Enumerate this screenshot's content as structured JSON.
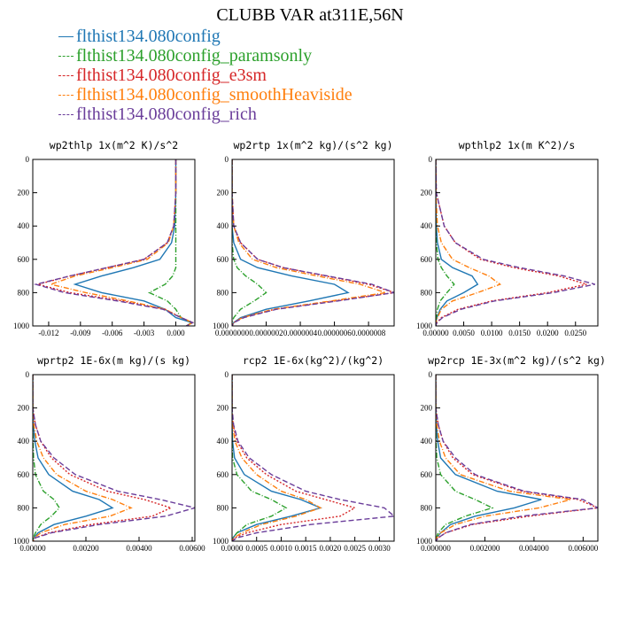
{
  "title": "CLUBB VAR at311E,56N",
  "colors": {
    "blue": "#1f77b4",
    "green": "#2ca02c",
    "red": "#d62728",
    "orange": "#ff7f0e",
    "purple": "#6a3d9a"
  },
  "legend": [
    {
      "label": "flthist134.080config",
      "color": "#1f77b4",
      "dash": "solid"
    },
    {
      "label": "flthist134.080config_paramsonly",
      "color": "#2ca02c",
      "dash": "dashdot"
    },
    {
      "label": "flthist134.080config_e3sm",
      "color": "#d62728",
      "dash": "dot"
    },
    {
      "label": "flthist134.080config_smoothHeaviside",
      "color": "#ff7f0e",
      "dash": "dashdot"
    },
    {
      "label": "flthist134.080config_rich",
      "color": "#6a3d9a",
      "dash": "dash"
    }
  ],
  "chart_data": [
    {
      "type": "line",
      "title": "wp2thlp  1x(m^2 K)/s^2",
      "xlim": [
        -0.0135,
        0.0018
      ],
      "ylim": [
        1000,
        0
      ],
      "xticks": [
        -0.012,
        -0.009,
        -0.006,
        -0.003,
        0.0
      ],
      "xticklabels": [
        "-0.012",
        "-0.009",
        "-0.006",
        "-0.003",
        "0.000"
      ],
      "yticks": [
        0,
        200,
        400,
        600,
        800,
        1000
      ],
      "y": [
        0,
        200,
        400,
        500,
        600,
        650,
        700,
        750,
        800,
        850,
        900,
        950,
        980,
        1000
      ],
      "series": [
        {
          "values": [
            0,
            0,
            -0.0001,
            -0.0004,
            -0.0015,
            -0.004,
            -0.007,
            -0.0095,
            -0.007,
            -0.003,
            -0.001,
            0,
            0.0015,
            0.001
          ]
        },
        {
          "values": [
            0,
            0,
            0,
            0,
            0,
            0,
            -0.0003,
            -0.001,
            -0.0025,
            -0.0008,
            0,
            0.0005,
            0.0015,
            0.001
          ]
        },
        {
          "values": [
            0,
            0,
            -0.0002,
            -0.0008,
            -0.003,
            -0.0065,
            -0.01,
            -0.013,
            -0.01,
            -0.005,
            -0.001,
            0.0005,
            0.0016,
            0.001
          ]
        },
        {
          "values": [
            0,
            0,
            -0.0002,
            -0.0007,
            -0.0027,
            -0.006,
            -0.0095,
            -0.0118,
            -0.0085,
            -0.0045,
            -0.001,
            0.0005,
            0.0016,
            0.001
          ]
        },
        {
          "values": [
            0,
            0,
            -0.0002,
            -0.0008,
            -0.003,
            -0.0065,
            -0.01,
            -0.0132,
            -0.0105,
            -0.0055,
            -0.0012,
            0.0005,
            0.0016,
            0.001
          ]
        }
      ]
    },
    {
      "type": "line",
      "title": "wp2rtp  1x(m^2 kg)/(s^2 kg)",
      "xlim": [
        0,
        9.5e-07
      ],
      "ylim": [
        1000,
        0
      ],
      "xticks": [
        0,
        2e-07,
        4e-07,
        6e-07,
        8e-07
      ],
      "xticklabels": [
        "0.0000000",
        "0.0000002",
        "0.0000004",
        "0.0000006",
        "0.0000008"
      ],
      "yticks": [
        0,
        200,
        400,
        600,
        800,
        1000
      ],
      "y": [
        0,
        200,
        400,
        500,
        600,
        650,
        700,
        750,
        800,
        850,
        900,
        950,
        980,
        1000
      ],
      "series": [
        {
          "values": [
            0,
            0,
            0,
            1e-08,
            5e-08,
            1.5e-07,
            3.5e-07,
            6e-07,
            6.8e-07,
            4.5e-07,
            2e-07,
            5e-08,
            1e-08,
            0
          ]
        },
        {
          "values": [
            0,
            0,
            0,
            0,
            1e-08,
            3e-08,
            8e-08,
            1.5e-07,
            2e-07,
            1.3e-07,
            5e-08,
            1e-08,
            0,
            0
          ]
        },
        {
          "values": [
            0,
            0,
            1e-08,
            5e-08,
            1.5e-07,
            3e-07,
            5.5e-07,
            8e-07,
            9.5e-07,
            6e-07,
            2.5e-07,
            6e-08,
            1e-08,
            0
          ]
        },
        {
          "values": [
            0,
            0,
            1e-08,
            4e-08,
            1.2e-07,
            2.6e-07,
            5e-07,
            7.5e-07,
            9e-07,
            5.8e-07,
            2.4e-07,
            6e-08,
            1e-08,
            0
          ]
        },
        {
          "values": [
            0,
            0,
            1e-08,
            5e-08,
            1.5e-07,
            3e-07,
            5.6e-07,
            8.2e-07,
            9.5e-07,
            6.2e-07,
            2.6e-07,
            7e-08,
            1e-08,
            0
          ]
        }
      ]
    },
    {
      "type": "line",
      "title": "wpthlp2  1x(m K^2)/s",
      "xlim": [
        0,
        0.029
      ],
      "ylim": [
        1000,
        0
      ],
      "xticks": [
        0,
        0.005,
        0.01,
        0.015,
        0.02,
        0.025
      ],
      "xticklabels": [
        "0.00000",
        "0.0050",
        "0.0100",
        "0.0150",
        "0.0200",
        "0.0250"
      ],
      "yticks": [
        0,
        200,
        400,
        600,
        800,
        1000
      ],
      "y": [
        0,
        200,
        400,
        500,
        600,
        650,
        700,
        750,
        800,
        850,
        900,
        950,
        980,
        1000
      ],
      "series": [
        {
          "values": [
            0,
            0,
            0.0001,
            0.0003,
            0.001,
            0.003,
            0.0065,
            0.0075,
            0.005,
            0.002,
            0.0008,
            0.0002,
            0,
            0
          ]
        },
        {
          "values": [
            0,
            0,
            0,
            0.0001,
            0.0004,
            0.001,
            0.002,
            0.0033,
            0.002,
            0.0008,
            0.0003,
            0.0001,
            0,
            0
          ]
        },
        {
          "values": [
            0,
            0.0001,
            0.0015,
            0.0035,
            0.008,
            0.014,
            0.022,
            0.027,
            0.02,
            0.01,
            0.004,
            0.001,
            0.0002,
            0
          ]
        },
        {
          "values": [
            0,
            0,
            0.0003,
            0.001,
            0.003,
            0.006,
            0.0095,
            0.0115,
            0.0075,
            0.003,
            0.001,
            0.0003,
            0,
            0
          ]
        },
        {
          "values": [
            0,
            0.0001,
            0.0015,
            0.0035,
            0.0085,
            0.015,
            0.023,
            0.0285,
            0.021,
            0.0105,
            0.0045,
            0.0012,
            0.0002,
            0
          ]
        }
      ]
    },
    {
      "type": "line",
      "title": "wprtp2  1E-6x(m kg)/(s kg)",
      "xlim": [
        0,
        0.0061
      ],
      "ylim": [
        1000,
        0
      ],
      "xticks": [
        0,
        0.002,
        0.004,
        0.006
      ],
      "xticklabels": [
        "0.00000",
        "0.00200",
        "0.00400",
        "0.00600"
      ],
      "yticks": [
        0,
        200,
        400,
        600,
        800,
        1000
      ],
      "y": [
        0,
        200,
        300,
        400,
        500,
        600,
        700,
        750,
        800,
        850,
        900,
        950,
        980,
        1000
      ],
      "series": [
        {
          "values": [
            0,
            0,
            2e-05,
            8e-05,
            0.0002,
            0.0006,
            0.0015,
            0.0025,
            0.003,
            0.002,
            0.0008,
            0.0002,
            4e-05,
            0
          ]
        },
        {
          "values": [
            0,
            0,
            0,
            1e-05,
            3e-05,
            0.0001,
            0.0004,
            0.0008,
            0.001,
            0.0007,
            0.0003,
            0.0001,
            2e-05,
            0
          ]
        },
        {
          "values": [
            0,
            0,
            0.0001,
            0.0003,
            0.0007,
            0.0014,
            0.0028,
            0.0042,
            0.0052,
            0.0045,
            0.0022,
            0.0006,
            0.0001,
            0
          ]
        },
        {
          "values": [
            0,
            0,
            4e-05,
            0.00015,
            0.0004,
            0.0009,
            0.002,
            0.003,
            0.0037,
            0.0029,
            0.0012,
            0.0003,
            5e-05,
            0
          ]
        },
        {
          "values": [
            0,
            0,
            0.0001,
            0.0003,
            0.0008,
            0.0016,
            0.0032,
            0.0048,
            0.0061,
            0.005,
            0.0025,
            0.0007,
            0.0001,
            0
          ]
        }
      ]
    },
    {
      "type": "line",
      "title": "rcp2  1E-6x(kg^2)/(kg^2)",
      "xlim": [
        0,
        0.0033
      ],
      "ylim": [
        1000,
        0
      ],
      "xticks": [
        0,
        0.0005,
        0.001,
        0.0015,
        0.002,
        0.0025,
        0.003
      ],
      "xticklabels": [
        "0.0000",
        "0.0005",
        "0.0010",
        "0.0015",
        "0.0020",
        "0.0025",
        "0.0030"
      ],
      "yticks": [
        0,
        200,
        400,
        600,
        800,
        1000
      ],
      "y": [
        0,
        200,
        300,
        400,
        500,
        600,
        700,
        750,
        800,
        850,
        900,
        950,
        980,
        1000
      ],
      "series": [
        {
          "values": [
            0,
            0,
            0,
            1e-05,
            5e-05,
            0.00025,
            0.0008,
            0.0014,
            0.0018,
            0.0012,
            0.0005,
            0.0001,
            2e-05,
            0
          ]
        },
        {
          "values": [
            0,
            0,
            0,
            0,
            1e-05,
            0.0001,
            0.0004,
            0.0008,
            0.0011,
            0.0008,
            0.0003,
            0.0001,
            2e-05,
            0
          ]
        },
        {
          "values": [
            0,
            0,
            2e-05,
            0.0001,
            0.0003,
            0.0007,
            0.0013,
            0.0019,
            0.0025,
            0.0022,
            0.001,
            0.0003,
            5e-05,
            0
          ]
        },
        {
          "values": [
            0,
            0,
            1e-05,
            6e-05,
            0.0002,
            0.0005,
            0.001,
            0.0015,
            0.0018,
            0.0013,
            0.0006,
            0.0002,
            3e-05,
            0
          ]
        },
        {
          "values": [
            0,
            0,
            3e-05,
            0.00012,
            0.00035,
            0.0008,
            0.0015,
            0.0022,
            0.0031,
            0.0033,
            0.0016,
            0.0005,
            0.0001,
            0
          ]
        }
      ]
    },
    {
      "type": "line",
      "title": "wp2rcp  1E-3x(m^2 kg)/(s^2 kg)",
      "xlim": [
        0,
        0.0066
      ],
      "ylim": [
        1000,
        0
      ],
      "xticks": [
        0,
        0.002,
        0.004,
        0.006
      ],
      "xticklabels": [
        "0.000000",
        "0.002000",
        "0.004000",
        "0.006000"
      ],
      "yticks": [
        0,
        200,
        400,
        600,
        800,
        1000
      ],
      "y": [
        0,
        200,
        300,
        400,
        500,
        600,
        700,
        750,
        800,
        850,
        900,
        950,
        980,
        1000
      ],
      "series": [
        {
          "values": [
            0,
            0,
            2e-05,
            8e-05,
            0.0002,
            0.0008,
            0.0025,
            0.0043,
            0.0032,
            0.0016,
            0.0006,
            0.0002,
            4e-05,
            0
          ]
        },
        {
          "values": [
            0,
            0,
            0,
            1e-05,
            4e-05,
            0.0002,
            0.0008,
            0.0016,
            0.0023,
            0.0012,
            0.0004,
            0.0001,
            2e-05,
            0
          ]
        },
        {
          "values": [
            0,
            0,
            0.0001,
            0.0003,
            0.0007,
            0.0015,
            0.0035,
            0.0058,
            0.0066,
            0.0038,
            0.0015,
            0.0004,
            0.0001,
            0
          ]
        },
        {
          "values": [
            0,
            0,
            4e-05,
            0.00015,
            0.0004,
            0.001,
            0.003,
            0.0055,
            0.0042,
            0.002,
            0.0008,
            0.0002,
            4e-05,
            0
          ]
        },
        {
          "values": [
            0,
            0,
            0.0001,
            0.0003,
            0.0008,
            0.0016,
            0.0036,
            0.006,
            0.0066,
            0.0035,
            0.0014,
            0.0004,
            0.0001,
            0
          ]
        }
      ]
    }
  ]
}
